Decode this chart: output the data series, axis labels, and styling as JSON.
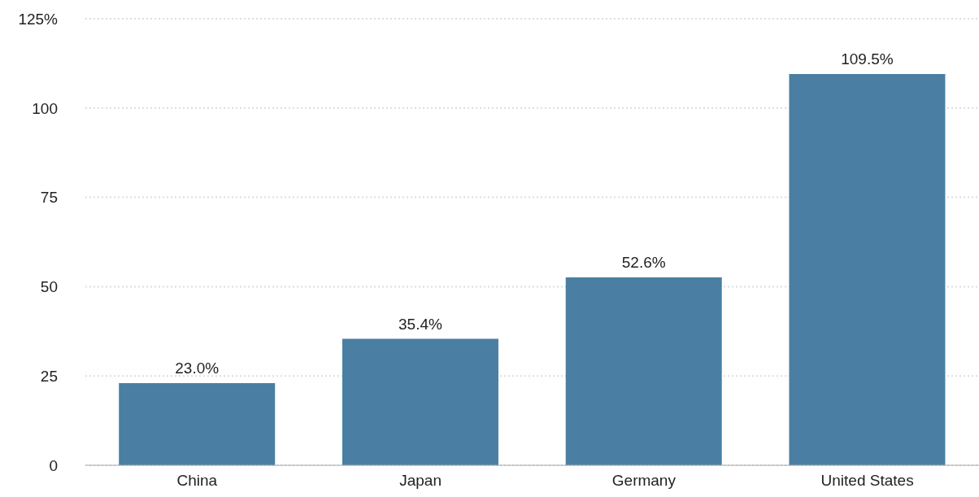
{
  "chart_data": {
    "type": "bar",
    "categories": [
      "China",
      "Japan",
      "Germany",
      "United States"
    ],
    "values": [
      23.0,
      35.4,
      52.6,
      109.5
    ],
    "value_labels": [
      "23.0%",
      "35.4%",
      "52.6%",
      "109.5%"
    ],
    "color": "#4a7fa3",
    "ylim": [
      0,
      125
    ],
    "yticks": [
      0,
      25,
      50,
      75,
      100,
      {
        "value": 125,
        "label": "125%"
      }
    ],
    "grid": "y"
  }
}
